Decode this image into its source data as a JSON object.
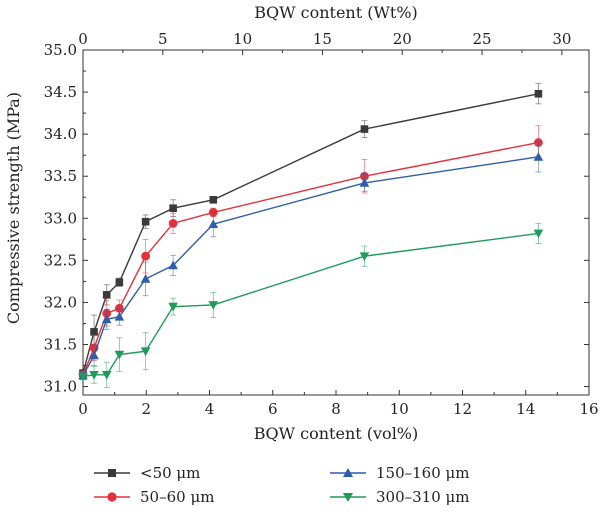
{
  "chart_data": {
    "type": "line",
    "xlabel": "BQW content (vol%)",
    "x2label": "BQW content (Wt%)",
    "ylabel": "Compressive strength (MPa)",
    "xlim": [
      0,
      16
    ],
    "x2lim": [
      0,
      31.7
    ],
    "ylim": [
      30.9,
      35.0
    ],
    "xticks": [
      "0",
      "2",
      "4",
      "6",
      "8",
      "10",
      "12",
      "14",
      "16"
    ],
    "x2ticks": [
      "0",
      "5",
      "10",
      "15",
      "20",
      "25",
      "30"
    ],
    "yticks": [
      "31.0",
      "31.5",
      "32.0",
      "32.5",
      "33.0",
      "33.5",
      "34.0",
      "34.5",
      "35.0"
    ],
    "grid": false,
    "legend_position": "bottom",
    "series": [
      {
        "name": "<50 μm",
        "color": "#3a3a3a",
        "marker": "square",
        "x": [
          0.0,
          0.35,
          0.75,
          1.15,
          1.98,
          2.85,
          4.12,
          8.9,
          14.4
        ],
        "y": [
          31.16,
          31.65,
          32.09,
          32.24,
          32.96,
          33.12,
          33.22,
          34.06,
          34.48
        ],
        "err": [
          0.04,
          0.2,
          0.12,
          0.05,
          0.08,
          0.1,
          0.03,
          0.1,
          0.12
        ]
      },
      {
        "name": "50–60 μm",
        "color": "#e5303c",
        "marker": "circle",
        "x": [
          0.0,
          0.35,
          0.75,
          1.15,
          1.98,
          2.85,
          4.12,
          8.9,
          14.4
        ],
        "y": [
          31.14,
          31.46,
          31.87,
          31.93,
          32.55,
          32.94,
          33.07,
          33.5,
          33.9
        ],
        "err": [
          0.04,
          0.15,
          0.15,
          0.1,
          0.2,
          0.12,
          0.05,
          0.2,
          0.2
        ]
      },
      {
        "name": "150–160 μm",
        "color": "#2e5dab",
        "marker": "triangle-up",
        "x": [
          0.0,
          0.35,
          0.75,
          1.15,
          1.98,
          2.85,
          4.12,
          8.9,
          14.4
        ],
        "y": [
          31.13,
          31.37,
          31.8,
          31.83,
          32.28,
          32.44,
          32.93,
          33.42,
          33.73
        ],
        "err": [
          0.04,
          0.12,
          0.12,
          0.1,
          0.2,
          0.12,
          0.15,
          0.1,
          0.18
        ]
      },
      {
        "name": "300–310 μm",
        "color": "#1e9b5b",
        "marker": "triangle-down",
        "x": [
          0.0,
          0.35,
          0.75,
          1.15,
          1.98,
          2.85,
          4.12,
          8.9,
          14.4
        ],
        "y": [
          31.12,
          31.14,
          31.14,
          31.38,
          31.42,
          31.95,
          31.97,
          32.55,
          32.82
        ],
        "err": [
          0.04,
          0.1,
          0.15,
          0.2,
          0.22,
          0.1,
          0.15,
          0.12,
          0.12
        ]
      }
    ]
  }
}
